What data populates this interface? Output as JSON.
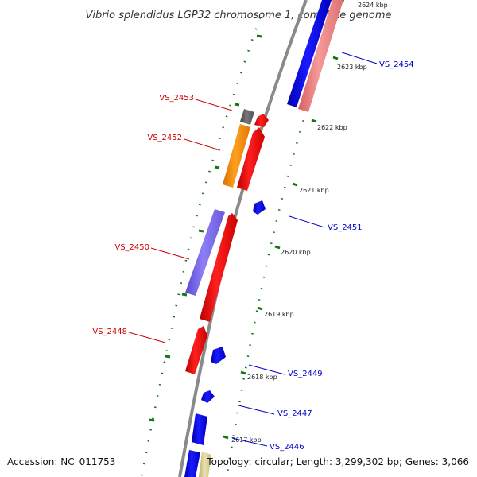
{
  "title": "Vibrio splendidus LGP32 chromosome 1, complete genome",
  "footer": {
    "accession": "Accession: NC_011753",
    "summary": "Topology: circular; Length: 3,299,302 bp; Genes: 3,066"
  },
  "colors": {
    "backbone": "#8a8a8a",
    "forward_label": "#0000cc",
    "reverse_label": "#cc0000",
    "tick": "#117711",
    "red": "#ff0000",
    "blue": "#0000ff",
    "salmon": "#f08080",
    "orange": "#ff8c00",
    "purple": "#7b68ee",
    "gray": "#606060",
    "tan": "#d8cc90"
  },
  "kbp_labels": [
    "2624 kbp",
    "2623 kbp",
    "2622 kbp",
    "2621 kbp",
    "2620 kbp",
    "2619 kbp",
    "2618 kbp",
    "2617 kbp"
  ],
  "genes_forward": [
    "VS_2454",
    "VS_2451",
    "VS_2449",
    "VS_2447",
    "VS_2446"
  ],
  "genes_reverse": [
    "VS_2453",
    "VS_2452",
    "VS_2450",
    "VS_2448"
  ]
}
